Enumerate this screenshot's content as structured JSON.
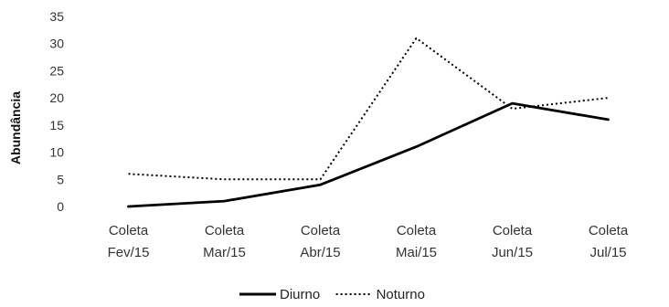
{
  "chart_data": {
    "type": "line",
    "categories": [
      [
        "Coleta",
        "Fev/15"
      ],
      [
        "Coleta",
        "Mar/15"
      ],
      [
        "Coleta",
        "Abr/15"
      ],
      [
        "Coleta",
        "Mai/15"
      ],
      [
        "Coleta",
        "Jun/15"
      ],
      [
        "Coleta",
        "Jul/15"
      ]
    ],
    "series": [
      {
        "name": "Diurno",
        "values": [
          0,
          1,
          4,
          11,
          19,
          16
        ],
        "color": "#000000",
        "style": "solid"
      },
      {
        "name": "Noturno",
        "values": [
          6,
          5,
          5,
          31,
          18,
          20
        ],
        "color": "#000000",
        "style": "dotted"
      }
    ],
    "title": "",
    "xlabel": "",
    "ylabel": "Abundância",
    "ylim": [
      0,
      35
    ],
    "yticks": [
      0,
      5,
      10,
      15,
      20,
      25,
      30,
      35
    ],
    "grid": false,
    "legend": "bottom"
  }
}
